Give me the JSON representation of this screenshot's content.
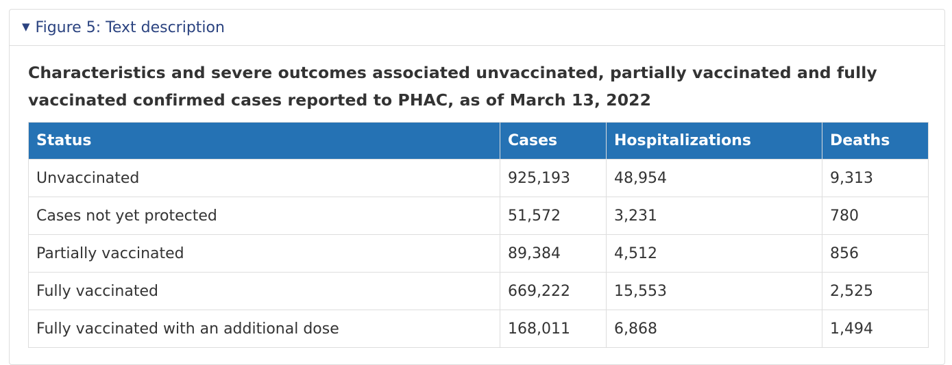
{
  "details": {
    "summary_label": "Figure 5: Text description",
    "caret_icon": "triangle-down-icon"
  },
  "table": {
    "caption": "Characteristics and severe outcomes associated unvaccinated, partially vaccinated and fully vaccinated confirmed cases reported to PHAC, as of March 13, 2022",
    "columns": [
      "Status",
      "Cases",
      "Hospitalizations",
      "Deaths"
    ],
    "rows": [
      {
        "status": "Unvaccinated",
        "cases": "925,193",
        "hospitalizations": "48,954",
        "deaths": "9,313"
      },
      {
        "status": "Cases not yet protected",
        "cases": "51,572",
        "hospitalizations": "3,231",
        "deaths": "780"
      },
      {
        "status": "Partially vaccinated",
        "cases": "89,384",
        "hospitalizations": "4,512",
        "deaths": "856"
      },
      {
        "status": "Fully vaccinated",
        "cases": "669,222",
        "hospitalizations": "15,553",
        "deaths": "2,525"
      },
      {
        "status": "Fully vaccinated with an additional dose",
        "cases": "168,011",
        "hospitalizations": "6,868",
        "deaths": "1,494"
      }
    ]
  },
  "colors": {
    "header_bg": "#2572b4",
    "summary_text": "#2b4380",
    "border": "#dddddd"
  }
}
